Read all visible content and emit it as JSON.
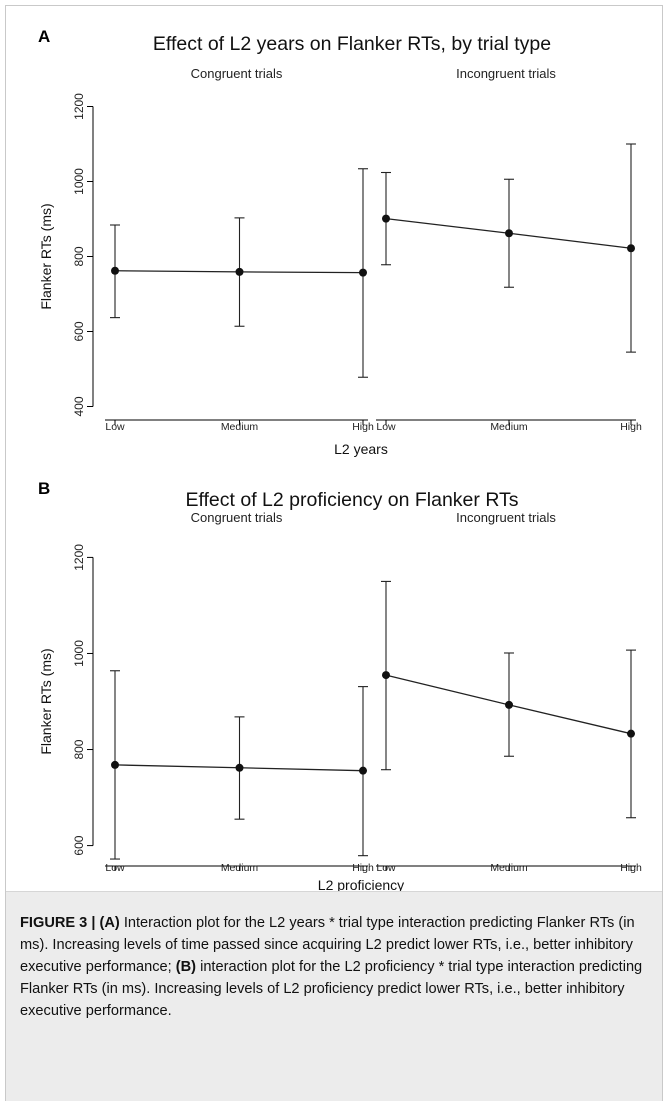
{
  "chart_data": [
    {
      "panel_letter": "A",
      "type": "line",
      "title": "Effect of L2 years on Flanker RTs, by trial type",
      "xlabel": "L2 years",
      "ylabel": "Flanker RTs (ms)",
      "categories": [
        "Low",
        "Medium",
        "High"
      ],
      "ylim": [
        380,
        1220
      ],
      "yticks": [
        400,
        600,
        800,
        1000,
        1200
      ],
      "grid": false,
      "legend": "none",
      "series": [
        {
          "name": "Congruent trials",
          "values": [
            762,
            759,
            757
          ],
          "ci_low": [
            637,
            614,
            478
          ],
          "ci_high": [
            884,
            903,
            1034
          ]
        },
        {
          "name": "Incongruent trials",
          "values": [
            901,
            862,
            822
          ],
          "ci_low": [
            778,
            718,
            545
          ],
          "ci_high": [
            1024,
            1006,
            1100
          ]
        }
      ]
    },
    {
      "panel_letter": "B",
      "type": "line",
      "title": "Effect of L2 proficiency on Flanker RTs",
      "xlabel": "L2 proficiency",
      "ylabel": "Flanker RTs (ms)",
      "categories": [
        "Low",
        "Medium",
        "High"
      ],
      "ylim": [
        570,
        1230
      ],
      "yticks": [
        600,
        800,
        1000,
        1200
      ],
      "grid": false,
      "legend": "none",
      "series": [
        {
          "name": "Congruent trials",
          "values": [
            768,
            762,
            756
          ],
          "ci_low": [
            572,
            655,
            579
          ],
          "ci_high": [
            964,
            868,
            931
          ]
        },
        {
          "name": "Incongruent trials",
          "values": [
            955,
            893,
            833
          ],
          "ci_low": [
            758,
            786,
            658
          ],
          "ci_high": [
            1150,
            1001,
            1007
          ]
        }
      ]
    }
  ],
  "caption": {
    "label": "FIGURE 3 |",
    "part_a": "(A)",
    "text_a": " Interaction plot for the L2 years * trial type interaction predicting Flanker RTs (in ms). Increasing levels of time passed since acquiring L2 predict lower RTs, i.e., better inhibitory executive performance; ",
    "part_b": "(B)",
    "text_b": " interaction plot for the L2 proficiency * trial type interaction predicting Flanker RTs (in ms). Increasing levels of L2 proficiency predict lower RTs, i.e., better inhibitory executive performance."
  }
}
